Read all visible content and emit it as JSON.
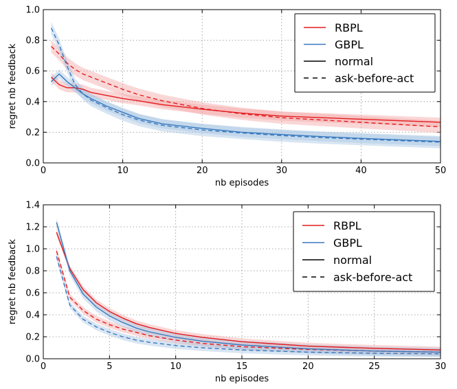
{
  "colors": {
    "rbpl": "#e31a1c",
    "gbpl": "#3778bf",
    "rbpl_band": "#f4a6a6",
    "gbpl_band": "#a9c5e3"
  },
  "chart_data": [
    {
      "type": "line",
      "xlabel": "nb episodes",
      "ylabel": "regret nb feedback",
      "xlim": [
        0,
        50
      ],
      "ylim": [
        0,
        1.0
      ],
      "xticks": [
        "0",
        "10",
        "20",
        "30",
        "40",
        "50"
      ],
      "yticks": [
        "0.0",
        "0.2",
        "0.4",
        "0.6",
        "0.8",
        "1.0"
      ],
      "grid": true,
      "legend_position": "top-right",
      "legend": [
        {
          "label": "RBPL",
          "style": "solid",
          "color": "#e31a1c"
        },
        {
          "label": "GBPL",
          "style": "solid",
          "color": "#3778bf"
        },
        {
          "label": "normal",
          "style": "solid",
          "color": "#000000"
        },
        {
          "label": "ask-before-act",
          "style": "dashed",
          "color": "#000000"
        }
      ],
      "series": [
        {
          "group": "RBPL",
          "style": "solid",
          "band": 0.03,
          "x": [
            1,
            2,
            3,
            4,
            5,
            6,
            8,
            10,
            12,
            15,
            20,
            25,
            30,
            35,
            40,
            45,
            50
          ],
          "y": [
            0.56,
            0.51,
            0.49,
            0.49,
            0.48,
            0.46,
            0.44,
            0.42,
            0.405,
            0.38,
            0.35,
            0.325,
            0.305,
            0.295,
            0.285,
            0.275,
            0.265
          ]
        },
        {
          "group": "RBPL",
          "style": "dashed",
          "band": 0.04,
          "x": [
            1,
            2,
            3,
            4,
            5,
            6,
            8,
            10,
            12,
            15,
            20,
            25,
            30,
            35,
            40,
            45,
            50
          ],
          "y": [
            0.76,
            0.71,
            0.65,
            0.61,
            0.58,
            0.56,
            0.52,
            0.48,
            0.445,
            0.405,
            0.355,
            0.32,
            0.295,
            0.28,
            0.265,
            0.25,
            0.235
          ]
        },
        {
          "group": "GBPL",
          "style": "solid",
          "band": 0.03,
          "x": [
            1,
            2,
            3,
            4,
            5,
            6,
            8,
            10,
            12,
            15,
            20,
            25,
            30,
            35,
            40,
            45,
            50
          ],
          "y": [
            0.53,
            0.58,
            0.53,
            0.49,
            0.45,
            0.42,
            0.37,
            0.33,
            0.29,
            0.255,
            0.225,
            0.2,
            0.185,
            0.172,
            0.16,
            0.15,
            0.14
          ]
        },
        {
          "group": "GBPL",
          "style": "dashed",
          "band": 0.04,
          "x": [
            1,
            2,
            3,
            4,
            5,
            6,
            8,
            10,
            12,
            15,
            20,
            25,
            30,
            35,
            40,
            45,
            50
          ],
          "y": [
            0.88,
            0.77,
            0.63,
            0.51,
            0.45,
            0.41,
            0.36,
            0.315,
            0.28,
            0.245,
            0.215,
            0.195,
            0.178,
            0.165,
            0.155,
            0.145,
            0.135
          ]
        }
      ]
    },
    {
      "type": "line",
      "xlabel": "nb episodes",
      "ylabel": "regret nb feedback",
      "xlim": [
        0,
        30
      ],
      "ylim": [
        0,
        1.4
      ],
      "xticks": [
        "0",
        "5",
        "10",
        "15",
        "20",
        "25",
        "30"
      ],
      "yticks": [
        "0.0",
        "0.2",
        "0.4",
        "0.6",
        "0.8",
        "1.0",
        "1.2",
        "1.4"
      ],
      "grid": true,
      "legend_position": "top-right",
      "legend": [
        {
          "label": "RBPL",
          "style": "solid",
          "color": "#e31a1c"
        },
        {
          "label": "GBPL",
          "style": "solid",
          "color": "#3778bf"
        },
        {
          "label": "normal",
          "style": "solid",
          "color": "#000000"
        },
        {
          "label": "ask-before-act",
          "style": "dashed",
          "color": "#000000"
        }
      ],
      "series": [
        {
          "group": "RBPL",
          "style": "solid",
          "band": 0.03,
          "x": [
            1,
            2,
            3,
            4,
            5,
            6,
            7,
            8,
            10,
            12,
            15,
            20,
            25,
            30
          ],
          "y": [
            1.15,
            0.82,
            0.63,
            0.51,
            0.43,
            0.37,
            0.32,
            0.285,
            0.23,
            0.195,
            0.155,
            0.115,
            0.095,
            0.08
          ]
        },
        {
          "group": "RBPL",
          "style": "dashed",
          "band": 0.03,
          "x": [
            1,
            2,
            3,
            4,
            5,
            6,
            7,
            8,
            10,
            12,
            15,
            20,
            25,
            30
          ],
          "y": [
            0.98,
            0.56,
            0.44,
            0.36,
            0.31,
            0.27,
            0.24,
            0.21,
            0.17,
            0.14,
            0.11,
            0.085,
            0.07,
            0.06
          ]
        },
        {
          "group": "GBPL",
          "style": "solid",
          "band": 0.04,
          "x": [
            1,
            2,
            3,
            4,
            5,
            6,
            7,
            8,
            10,
            12,
            15,
            20,
            25,
            30
          ],
          "y": [
            1.24,
            0.8,
            0.59,
            0.47,
            0.39,
            0.33,
            0.28,
            0.245,
            0.195,
            0.16,
            0.125,
            0.09,
            0.07,
            0.06
          ]
        },
        {
          "group": "GBPL",
          "style": "dashed",
          "band": 0.03,
          "x": [
            1,
            2,
            3,
            4,
            5,
            6,
            7,
            8,
            10,
            12,
            15,
            20,
            25,
            30
          ],
          "y": [
            0.93,
            0.49,
            0.36,
            0.29,
            0.24,
            0.2,
            0.17,
            0.15,
            0.12,
            0.1,
            0.08,
            0.06,
            0.05,
            0.045
          ]
        }
      ]
    }
  ]
}
